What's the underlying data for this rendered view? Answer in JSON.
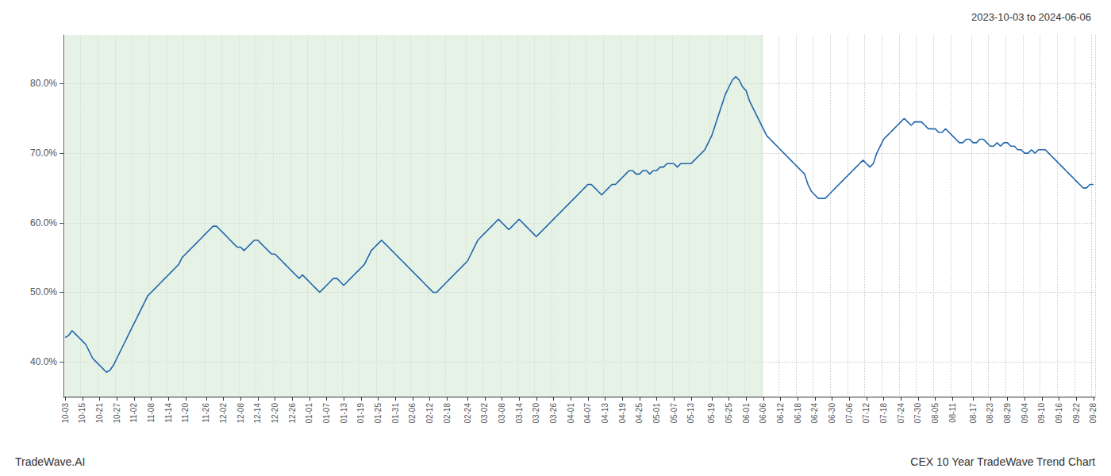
{
  "chart_data": {
    "type": "line",
    "title": "CEX 10 Year TradeWave Trend Chart",
    "subtitle": "2023-10-03 to 2024-06-06",
    "annotations": [
      "TradeWave.AI"
    ],
    "color": "#2166ac",
    "grid": true,
    "shaded_region": {
      "from": "10-03",
      "to": "06-06",
      "color": "#d4ead4"
    },
    "ylim": [
      35.0,
      87.0
    ],
    "yticks": [
      {
        "value": 40.0,
        "label": "40.0%"
      },
      {
        "value": 50.0,
        "label": "50.0%"
      },
      {
        "value": 60.0,
        "label": "60.0%"
      },
      {
        "value": 70.0,
        "label": "70.0%"
      },
      {
        "value": 80.0,
        "label": "80.0%"
      }
    ],
    "categories": [
      "10-03",
      null,
      null,
      null,
      null,
      "10-15",
      null,
      null,
      null,
      null,
      "10-21",
      null,
      null,
      null,
      null,
      "10-27",
      null,
      null,
      null,
      null,
      "11-02",
      null,
      null,
      null,
      null,
      "11-08",
      null,
      null,
      null,
      null,
      "11-14",
      null,
      null,
      null,
      null,
      "11-20",
      null,
      null,
      null,
      null,
      null,
      "11-26",
      null,
      null,
      null,
      null,
      "12-02",
      null,
      null,
      null,
      null,
      "12-08",
      null,
      null,
      null,
      null,
      "12-14",
      null,
      null,
      null,
      null,
      "12-20",
      null,
      null,
      null,
      null,
      "12-26",
      null,
      null,
      null,
      null,
      "01-01",
      null,
      null,
      null,
      null,
      "01-07",
      null,
      null,
      null,
      null,
      "01-13",
      null,
      null,
      null,
      null,
      "01-19",
      null,
      null,
      null,
      null,
      "01-25",
      null,
      null,
      null,
      null,
      "01-31",
      null,
      null,
      null,
      null,
      "02-06",
      null,
      null,
      null,
      null,
      "02-12",
      null,
      null,
      null,
      null,
      "02-18",
      null,
      null,
      null,
      null,
      null,
      "02-24",
      null,
      null,
      null,
      null,
      "03-02",
      null,
      null,
      null,
      null,
      "03-08",
      null,
      null,
      null,
      null,
      "03-14",
      null,
      null,
      null,
      null,
      "03-20",
      null,
      null,
      null,
      null,
      "03-26",
      null,
      null,
      null,
      null,
      "04-01",
      null,
      null,
      null,
      null,
      "04-07",
      null,
      null,
      null,
      null,
      "04-13",
      null,
      null,
      null,
      null,
      "04-19",
      null,
      null,
      null,
      null,
      "04-25",
      null,
      null,
      null,
      null,
      "05-01",
      null,
      null,
      null,
      null,
      "05-07",
      null,
      null,
      null,
      null,
      "05-13",
      null,
      null,
      null,
      null,
      null,
      "05-19",
      null,
      null,
      null,
      null,
      "05-25",
      null,
      null,
      null,
      null,
      "06-01",
      null,
      null,
      null,
      null,
      "06-06",
      null,
      null,
      null,
      null,
      "06-12",
      null,
      null,
      null,
      null,
      "06-18",
      null,
      null,
      null,
      null,
      "06-24",
      null,
      null,
      null,
      null,
      "06-30",
      null,
      null,
      null,
      null,
      "07-06",
      null,
      null,
      null,
      null,
      "07-12",
      null,
      null,
      null,
      null,
      "07-18",
      null,
      null,
      null,
      null,
      "07-24",
      null,
      null,
      null,
      null,
      "07-30",
      null,
      null,
      null,
      null,
      "08-05",
      null,
      null,
      null,
      null,
      "08-11",
      null,
      null,
      null,
      null,
      null,
      "08-17",
      null,
      null,
      null,
      null,
      "08-23",
      null,
      null,
      null,
      null,
      "08-29",
      null,
      null,
      null,
      null,
      "09-04",
      null,
      null,
      null,
      null,
      "09-10",
      null,
      null,
      null,
      null,
      "09-16",
      null,
      null,
      null,
      null,
      "09-22",
      null,
      null,
      null,
      null,
      "09-28"
    ],
    "values": [
      43.5,
      43.8,
      44.5,
      44.0,
      43.5,
      43.0,
      42.5,
      41.5,
      40.5,
      40.0,
      39.5,
      39.0,
      38.5,
      38.8,
      39.5,
      40.5,
      41.5,
      42.5,
      43.5,
      44.5,
      45.5,
      46.5,
      47.5,
      48.5,
      49.5,
      50.0,
      50.5,
      51.0,
      51.5,
      52.0,
      52.5,
      53.0,
      53.5,
      54.0,
      55.0,
      55.5,
      56.0,
      56.5,
      57.0,
      57.5,
      58.0,
      58.5,
      59.0,
      59.5,
      59.5,
      59.0,
      58.5,
      58.0,
      57.5,
      57.0,
      56.5,
      56.5,
      56.0,
      56.5,
      57.0,
      57.5,
      57.5,
      57.0,
      56.5,
      56.0,
      55.5,
      55.5,
      55.0,
      54.5,
      54.0,
      53.5,
      53.0,
      52.5,
      52.0,
      52.5,
      52.0,
      51.5,
      51.0,
      50.5,
      50.0,
      50.5,
      51.0,
      51.5,
      52.0,
      52.0,
      51.5,
      51.0,
      51.5,
      52.0,
      52.5,
      53.0,
      53.5,
      54.0,
      55.0,
      56.0,
      56.5,
      57.0,
      57.5,
      57.0,
      56.5,
      56.0,
      55.5,
      55.0,
      54.5,
      54.0,
      53.5,
      53.0,
      52.5,
      52.0,
      51.5,
      51.0,
      50.5,
      50.0,
      50.0,
      50.5,
      51.0,
      51.5,
      52.0,
      52.5,
      53.0,
      53.5,
      54.0,
      54.5,
      55.5,
      56.5,
      57.5,
      58.0,
      58.5,
      59.0,
      59.5,
      60.0,
      60.5,
      60.0,
      59.5,
      59.0,
      59.5,
      60.0,
      60.5,
      60.0,
      59.5,
      59.0,
      58.5,
      58.0,
      58.5,
      59.0,
      59.5,
      60.0,
      60.5,
      61.0,
      61.5,
      62.0,
      62.5,
      63.0,
      63.5,
      64.0,
      64.5,
      65.0,
      65.5,
      65.5,
      65.0,
      64.5,
      64.0,
      64.5,
      65.0,
      65.5,
      65.5,
      66.0,
      66.5,
      67.0,
      67.5,
      67.5,
      67.0,
      67.0,
      67.5,
      67.5,
      67.0,
      67.5,
      67.5,
      68.0,
      68.0,
      68.5,
      68.5,
      68.5,
      68.0,
      68.5,
      68.5,
      68.5,
      68.5,
      69.0,
      69.5,
      70.0,
      70.5,
      71.5,
      72.5,
      74.0,
      75.5,
      77.0,
      78.5,
      79.5,
      80.5,
      81.0,
      80.5,
      79.5,
      79.0,
      77.5,
      76.5,
      75.5,
      74.5,
      73.5,
      72.5,
      72.0,
      71.5,
      71.0,
      70.5,
      70.0,
      69.5,
      69.0,
      68.5,
      68.0,
      67.5,
      67.0,
      65.5,
      64.5,
      64.0,
      63.5,
      63.5,
      63.5,
      64.0,
      64.5,
      65.0,
      65.5,
      66.0,
      66.5,
      67.0,
      67.5,
      68.0,
      68.5,
      69.0,
      68.5,
      68.0,
      68.5,
      70.0,
      71.0,
      72.0,
      72.5,
      73.0,
      73.5,
      74.0,
      74.5,
      75.0,
      74.5,
      74.0,
      74.5,
      74.5,
      74.5,
      74.0,
      73.5,
      73.5,
      73.5,
      73.0,
      73.0,
      73.5,
      73.0,
      72.5,
      72.0,
      71.5,
      71.5,
      72.0,
      72.0,
      71.5,
      71.5,
      72.0,
      72.0,
      71.5,
      71.0,
      71.0,
      71.5,
      71.0,
      71.5,
      71.5,
      71.0,
      71.0,
      70.5,
      70.5,
      70.0,
      70.0,
      70.5,
      70.0,
      70.5,
      70.5,
      70.5,
      70.0,
      69.5,
      69.0,
      68.5,
      68.0,
      67.5,
      67.0,
      66.5,
      66.0,
      65.5,
      65.0,
      65.0,
      65.5,
      65.5
    ]
  }
}
